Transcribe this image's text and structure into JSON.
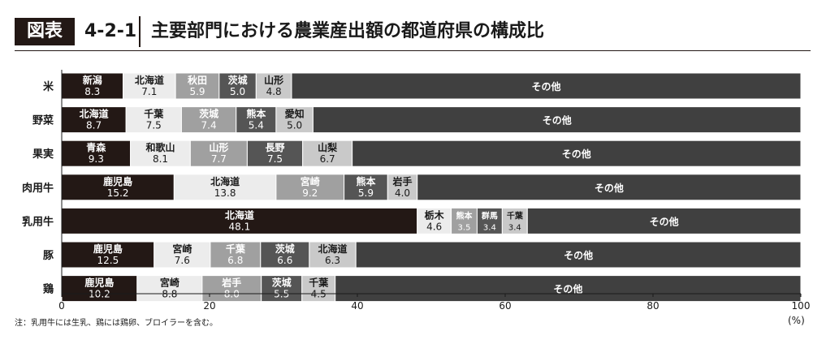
{
  "header": {
    "badge": "図表",
    "number": "4-2-1",
    "title": "主要部門における農業産出額の都道府県の構成比"
  },
  "note": "注：乳用牛には生乳、鶏には鶏卵、ブロイラーを含む。",
  "unit_label": "(%)",
  "colors": {
    "dark": "#231815",
    "light": "#ececec",
    "mid": "#a0a0a0",
    "darkgray": "#555555",
    "lightgray": "#c9c9c9",
    "other": "#404040"
  },
  "chart_data": {
    "type": "bar",
    "orientation": "horizontal",
    "stacked": true,
    "xlim": [
      0,
      100
    ],
    "xticks": [
      "0",
      "20",
      "40",
      "60",
      "80",
      "100"
    ],
    "categories": [
      "米",
      "野菜",
      "果実",
      "肉用牛",
      "乳用牛",
      "豚",
      "鶏"
    ],
    "rows": [
      {
        "category": "米",
        "segments": [
          {
            "name": "新潟",
            "value": 8.3
          },
          {
            "name": "北海道",
            "value": 7.1
          },
          {
            "name": "秋田",
            "value": 5.9
          },
          {
            "name": "茨城",
            "value": 5.0
          },
          {
            "name": "山形",
            "value": 4.8
          },
          {
            "name": "その他",
            "value": 68.9
          }
        ]
      },
      {
        "category": "野菜",
        "segments": [
          {
            "name": "北海道",
            "value": 8.7
          },
          {
            "name": "千葉",
            "value": 7.5
          },
          {
            "name": "茨城",
            "value": 7.4
          },
          {
            "name": "熊本",
            "value": 5.4
          },
          {
            "name": "愛知",
            "value": 5.0
          },
          {
            "name": "その他",
            "value": 66.0
          }
        ]
      },
      {
        "category": "果実",
        "segments": [
          {
            "name": "青森",
            "value": 9.3
          },
          {
            "name": "和歌山",
            "value": 8.1
          },
          {
            "name": "山形",
            "value": 7.7
          },
          {
            "name": "長野",
            "value": 7.5
          },
          {
            "name": "山梨",
            "value": 6.7
          },
          {
            "name": "その他",
            "value": 60.7
          }
        ]
      },
      {
        "category": "肉用牛",
        "segments": [
          {
            "name": "鹿児島",
            "value": 15.2
          },
          {
            "name": "北海道",
            "value": 13.8
          },
          {
            "name": "宮崎",
            "value": 9.2
          },
          {
            "name": "熊本",
            "value": 5.9
          },
          {
            "name": "岩手",
            "value": 4.0
          },
          {
            "name": "その他",
            "value": 51.9
          }
        ]
      },
      {
        "category": "乳用牛",
        "segments": [
          {
            "name": "北海道",
            "value": 48.1
          },
          {
            "name": "栃木",
            "value": 4.6
          },
          {
            "name": "熊本",
            "value": 3.5
          },
          {
            "name": "群馬",
            "value": 3.4
          },
          {
            "name": "千葉",
            "value": 3.4
          },
          {
            "name": "その他",
            "value": 37.0
          }
        ]
      },
      {
        "category": "豚",
        "segments": [
          {
            "name": "鹿児島",
            "value": 12.5
          },
          {
            "name": "宮崎",
            "value": 7.6
          },
          {
            "name": "千葉",
            "value": 6.8
          },
          {
            "name": "茨城",
            "value": 6.6
          },
          {
            "name": "北海道",
            "value": 6.3
          },
          {
            "name": "その他",
            "value": 60.2
          }
        ]
      },
      {
        "category": "鶏",
        "segments": [
          {
            "name": "鹿児島",
            "value": 10.2
          },
          {
            "name": "宮崎",
            "value": 8.8
          },
          {
            "name": "岩手",
            "value": 8.0
          },
          {
            "name": "茨城",
            "value": 5.5
          },
          {
            "name": "千葉",
            "value": 4.5
          },
          {
            "name": "その他",
            "value": 63.0
          }
        ]
      }
    ],
    "segment_colors": [
      "#231815",
      "#ececec",
      "#a0a0a0",
      "#555555",
      "#c9c9c9",
      "#404040"
    ]
  }
}
